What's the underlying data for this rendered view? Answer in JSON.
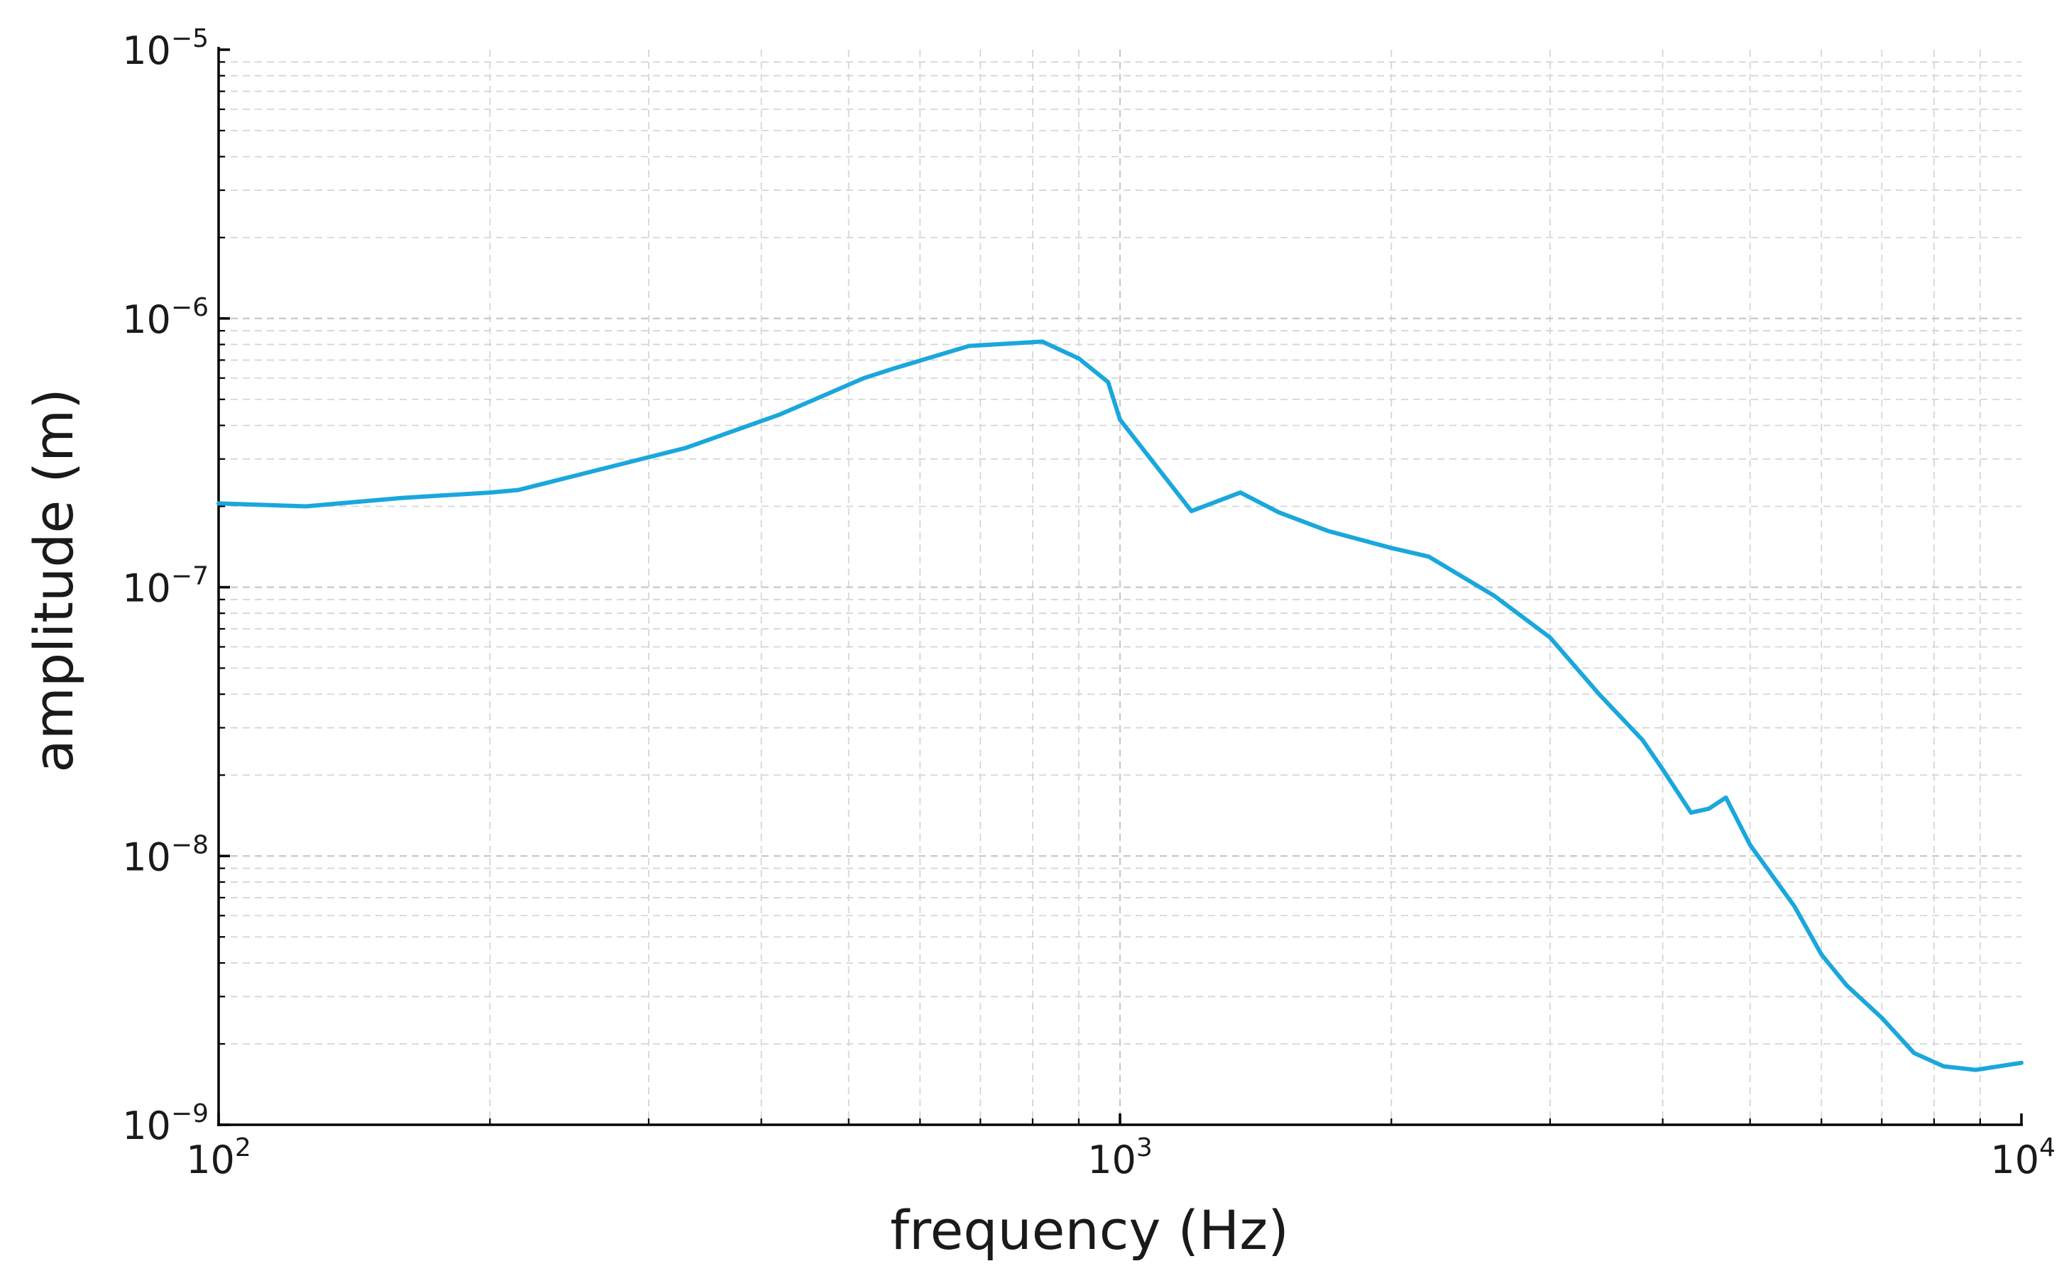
{
  "chart_data": {
    "type": "line",
    "title": "",
    "xlabel": "frequency (Hz)",
    "ylabel": "amplitude (m)",
    "xscale": "log",
    "yscale": "log",
    "xlim": [
      100,
      10000
    ],
    "ylim": [
      1e-09,
      1e-05
    ],
    "grid": "on",
    "line_color": "#1aa7dc",
    "x_ticks": [
      {
        "base": "10",
        "exp": "2",
        "value": 100
      },
      {
        "base": "10",
        "exp": "3",
        "value": 1000
      },
      {
        "base": "10",
        "exp": "4",
        "value": 10000
      }
    ],
    "y_ticks": [
      {
        "base": "10",
        "exp": "−9",
        "value": 1e-09
      },
      {
        "base": "10",
        "exp": "−8",
        "value": 1e-08
      },
      {
        "base": "10",
        "exp": "−7",
        "value": 1e-07
      },
      {
        "base": "10",
        "exp": "−6",
        "value": 1e-06
      },
      {
        "base": "10",
        "exp": "−5",
        "value": 1e-05
      }
    ],
    "series": [
      {
        "x": [
          100,
          125,
          160,
          200,
          215,
          260,
          330,
          420,
          520,
          560,
          680,
          820,
          900,
          970,
          1000,
          1200,
          1360,
          1500,
          1700,
          2000,
          2200,
          2600,
          3000,
          3400,
          3800,
          4000,
          4300,
          4500,
          4700,
          5000,
          5600,
          6000,
          6400,
          7000,
          7600,
          8200,
          8900,
          10000
        ],
        "y": [
          2.05e-07,
          2e-07,
          2.15e-07,
          2.25e-07,
          2.3e-07,
          2.7e-07,
          3.3e-07,
          4.4e-07,
          6e-07,
          6.5e-07,
          7.9e-07,
          8.2e-07,
          7.1e-07,
          5.8e-07,
          4.2e-07,
          1.92e-07,
          2.25e-07,
          1.9e-07,
          1.62e-07,
          1.4e-07,
          1.3e-07,
          9.3e-08,
          6.5e-08,
          4e-08,
          2.7e-08,
          2.1e-08,
          1.45e-08,
          1.5e-08,
          1.65e-08,
          1.1e-08,
          6.5e-09,
          4.3e-09,
          3.3e-09,
          2.5e-09,
          1.85e-09,
          1.65e-09,
          1.6e-09,
          1.7e-09
        ]
      }
    ]
  }
}
